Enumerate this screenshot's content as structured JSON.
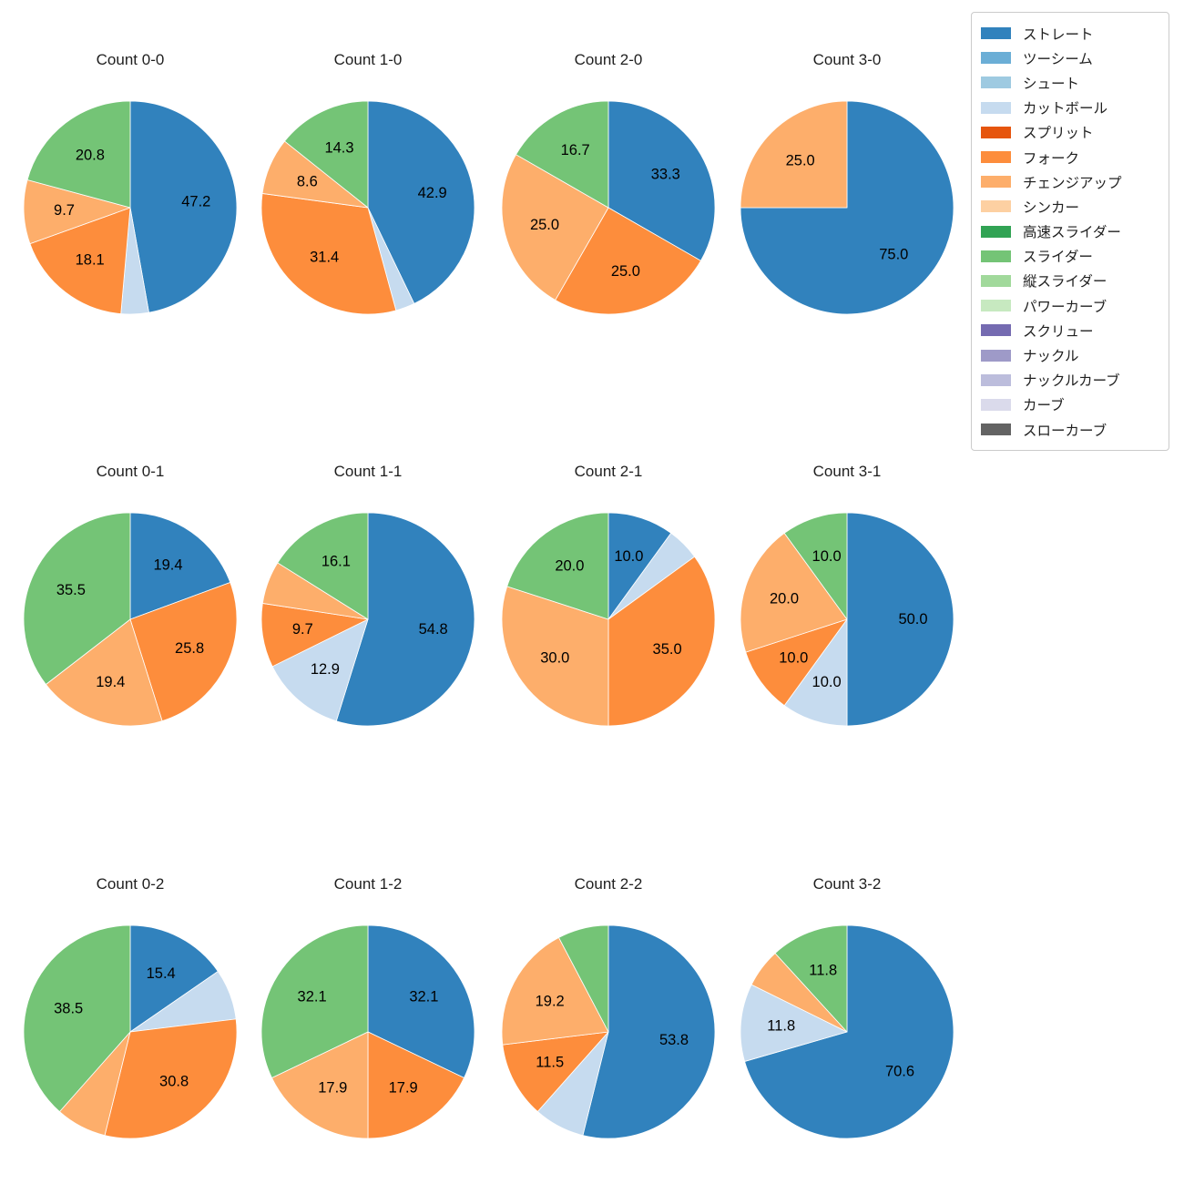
{
  "figure": {
    "background": "#ffffff",
    "grid": {
      "rows": 3,
      "cols": 4
    },
    "legend_position": "top-right"
  },
  "legend": {
    "items": [
      {
        "label": "ストレート",
        "color": "#3182bd"
      },
      {
        "label": "ツーシーム",
        "color": "#6baed6"
      },
      {
        "label": "シュート",
        "color": "#9ecae1"
      },
      {
        "label": "カットボール",
        "color": "#c6dbef"
      },
      {
        "label": "スプリット",
        "color": "#e6550d"
      },
      {
        "label": "フォーク",
        "color": "#fd8d3c"
      },
      {
        "label": "チェンジアップ",
        "color": "#fdae6b"
      },
      {
        "label": "シンカー",
        "color": "#fdd0a2"
      },
      {
        "label": "高速スライダー",
        "color": "#31a354"
      },
      {
        "label": "スライダー",
        "color": "#74c476"
      },
      {
        "label": "縦スライダー",
        "color": "#a1d99b"
      },
      {
        "label": "パワーカーブ",
        "color": "#c7e9c0"
      },
      {
        "label": "スクリュー",
        "color": "#756bb1"
      },
      {
        "label": "ナックル",
        "color": "#9e9ac8"
      },
      {
        "label": "ナックルカーブ",
        "color": "#bcbddc"
      },
      {
        "label": "カーブ",
        "color": "#dadaeb"
      },
      {
        "label": "スローカーブ",
        "color": "#636363"
      }
    ]
  },
  "chart_data": [
    {
      "type": "pie",
      "title": "Count 0-0",
      "start_angle_deg": 90,
      "direction": "clockwise",
      "slices": [
        {
          "label": "ストレート",
          "value": 47.2,
          "pct_text": "47.2",
          "color": "#3182bd"
        },
        {
          "label": "カットボール",
          "value": 4.2,
          "pct_text": "",
          "color": "#c6dbef"
        },
        {
          "label": "フォーク",
          "value": 18.1,
          "pct_text": "18.1",
          "color": "#fd8d3c"
        },
        {
          "label": "チェンジアップ",
          "value": 9.7,
          "pct_text": "9.7",
          "color": "#fdae6b"
        },
        {
          "label": "スライダー",
          "value": 20.8,
          "pct_text": "20.8",
          "color": "#74c476"
        }
      ]
    },
    {
      "type": "pie",
      "title": "Count 1-0",
      "start_angle_deg": 90,
      "direction": "clockwise",
      "slices": [
        {
          "label": "ストレート",
          "value": 42.9,
          "pct_text": "42.9",
          "color": "#3182bd"
        },
        {
          "label": "カットボール",
          "value": 2.9,
          "pct_text": "",
          "color": "#c6dbef"
        },
        {
          "label": "フォーク",
          "value": 31.4,
          "pct_text": "31.4",
          "color": "#fd8d3c"
        },
        {
          "label": "チェンジアップ",
          "value": 8.6,
          "pct_text": "8.6",
          "color": "#fdae6b"
        },
        {
          "label": "スライダー",
          "value": 14.3,
          "pct_text": "14.3",
          "color": "#74c476"
        }
      ]
    },
    {
      "type": "pie",
      "title": "Count 2-0",
      "start_angle_deg": 90,
      "direction": "clockwise",
      "slices": [
        {
          "label": "ストレート",
          "value": 33.3,
          "pct_text": "33.3",
          "color": "#3182bd"
        },
        {
          "label": "フォーク",
          "value": 25.0,
          "pct_text": "25.0",
          "color": "#fd8d3c"
        },
        {
          "label": "チェンジアップ",
          "value": 25.0,
          "pct_text": "25.0",
          "color": "#fdae6b"
        },
        {
          "label": "スライダー",
          "value": 16.7,
          "pct_text": "16.7",
          "color": "#74c476"
        }
      ]
    },
    {
      "type": "pie",
      "title": "Count 3-0",
      "start_angle_deg": 90,
      "direction": "clockwise",
      "slices": [
        {
          "label": "ストレート",
          "value": 75.0,
          "pct_text": "75.0",
          "color": "#3182bd"
        },
        {
          "label": "チェンジアップ",
          "value": 25.0,
          "pct_text": "25.0",
          "color": "#fdae6b"
        }
      ]
    },
    {
      "type": "pie",
      "title": "Count 0-1",
      "start_angle_deg": 90,
      "direction": "clockwise",
      "slices": [
        {
          "label": "ストレート",
          "value": 19.4,
          "pct_text": "19.4",
          "color": "#3182bd"
        },
        {
          "label": "フォーク",
          "value": 25.8,
          "pct_text": "25.8",
          "color": "#fd8d3c"
        },
        {
          "label": "チェンジアップ",
          "value": 19.4,
          "pct_text": "19.4",
          "color": "#fdae6b"
        },
        {
          "label": "スライダー",
          "value": 35.5,
          "pct_text": "35.5",
          "color": "#74c476"
        }
      ]
    },
    {
      "type": "pie",
      "title": "Count 1-1",
      "start_angle_deg": 90,
      "direction": "clockwise",
      "slices": [
        {
          "label": "ストレート",
          "value": 54.8,
          "pct_text": "54.8",
          "color": "#3182bd"
        },
        {
          "label": "カットボール",
          "value": 12.9,
          "pct_text": "12.9",
          "color": "#c6dbef"
        },
        {
          "label": "フォーク",
          "value": 9.7,
          "pct_text": "9.7",
          "color": "#fd8d3c"
        },
        {
          "label": "チェンジアップ",
          "value": 6.5,
          "pct_text": "",
          "color": "#fdae6b"
        },
        {
          "label": "スライダー",
          "value": 16.1,
          "pct_text": "16.1",
          "color": "#74c476"
        }
      ]
    },
    {
      "type": "pie",
      "title": "Count 2-1",
      "start_angle_deg": 90,
      "direction": "clockwise",
      "slices": [
        {
          "label": "ストレート",
          "value": 10.0,
          "pct_text": "10.0",
          "color": "#3182bd"
        },
        {
          "label": "カットボール",
          "value": 5.0,
          "pct_text": "",
          "color": "#c6dbef"
        },
        {
          "label": "フォーク",
          "value": 35.0,
          "pct_text": "35.0",
          "color": "#fd8d3c"
        },
        {
          "label": "チェンジアップ",
          "value": 30.0,
          "pct_text": "30.0",
          "color": "#fdae6b"
        },
        {
          "label": "スライダー",
          "value": 20.0,
          "pct_text": "20.0",
          "color": "#74c476"
        }
      ]
    },
    {
      "type": "pie",
      "title": "Count 3-1",
      "start_angle_deg": 90,
      "direction": "clockwise",
      "slices": [
        {
          "label": "ストレート",
          "value": 50.0,
          "pct_text": "50.0",
          "color": "#3182bd"
        },
        {
          "label": "カットボール",
          "value": 10.0,
          "pct_text": "10.0",
          "color": "#c6dbef"
        },
        {
          "label": "フォーク",
          "value": 10.0,
          "pct_text": "10.0",
          "color": "#fd8d3c"
        },
        {
          "label": "チェンジアップ",
          "value": 20.0,
          "pct_text": "20.0",
          "color": "#fdae6b"
        },
        {
          "label": "スライダー",
          "value": 10.0,
          "pct_text": "10.0",
          "color": "#74c476"
        }
      ]
    },
    {
      "type": "pie",
      "title": "Count 0-2",
      "start_angle_deg": 90,
      "direction": "clockwise",
      "slices": [
        {
          "label": "ストレート",
          "value": 15.4,
          "pct_text": "15.4",
          "color": "#3182bd"
        },
        {
          "label": "カットボール",
          "value": 7.7,
          "pct_text": "",
          "color": "#c6dbef"
        },
        {
          "label": "フォーク",
          "value": 30.8,
          "pct_text": "30.8",
          "color": "#fd8d3c"
        },
        {
          "label": "チェンジアップ",
          "value": 7.7,
          "pct_text": "",
          "color": "#fdae6b"
        },
        {
          "label": "スライダー",
          "value": 38.5,
          "pct_text": "38.5",
          "color": "#74c476"
        }
      ]
    },
    {
      "type": "pie",
      "title": "Count 1-2",
      "start_angle_deg": 90,
      "direction": "clockwise",
      "slices": [
        {
          "label": "ストレート",
          "value": 32.1,
          "pct_text": "32.1",
          "color": "#3182bd"
        },
        {
          "label": "フォーク",
          "value": 17.9,
          "pct_text": "17.9",
          "color": "#fd8d3c"
        },
        {
          "label": "チェンジアップ",
          "value": 17.9,
          "pct_text": "17.9",
          "color": "#fdae6b"
        },
        {
          "label": "スライダー",
          "value": 32.1,
          "pct_text": "32.1",
          "color": "#74c476"
        }
      ]
    },
    {
      "type": "pie",
      "title": "Count 2-2",
      "start_angle_deg": 90,
      "direction": "clockwise",
      "slices": [
        {
          "label": "ストレート",
          "value": 53.8,
          "pct_text": "53.8",
          "color": "#3182bd"
        },
        {
          "label": "カットボール",
          "value": 7.7,
          "pct_text": "",
          "color": "#c6dbef"
        },
        {
          "label": "フォーク",
          "value": 11.5,
          "pct_text": "11.5",
          "color": "#fd8d3c"
        },
        {
          "label": "チェンジアップ",
          "value": 19.2,
          "pct_text": "19.2",
          "color": "#fdae6b"
        },
        {
          "label": "スライダー",
          "value": 7.7,
          "pct_text": "",
          "color": "#74c476"
        }
      ]
    },
    {
      "type": "pie",
      "title": "Count 3-2",
      "start_angle_deg": 90,
      "direction": "clockwise",
      "slices": [
        {
          "label": "ストレート",
          "value": 70.6,
          "pct_text": "70.6",
          "color": "#3182bd"
        },
        {
          "label": "カットボール",
          "value": 11.8,
          "pct_text": "11.8",
          "color": "#c6dbef"
        },
        {
          "label": "チェンジアップ",
          "value": 5.9,
          "pct_text": "",
          "color": "#fdae6b"
        },
        {
          "label": "スライダー",
          "value": 11.8,
          "pct_text": "11.8",
          "color": "#74c476"
        }
      ]
    }
  ]
}
